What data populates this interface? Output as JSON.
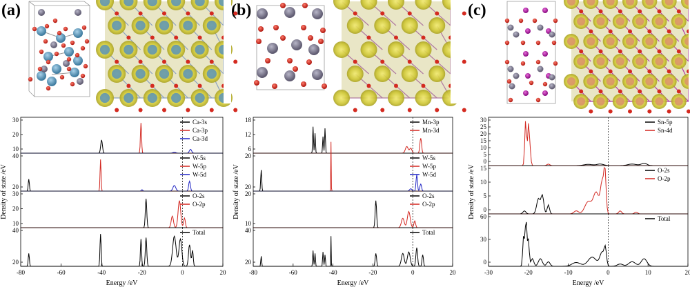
{
  "panels": [
    {
      "label": "(a)",
      "x_ticks": [
        "-80",
        "-60",
        "-40",
        "-20",
        "0",
        "20"
      ],
      "xlabel": "Energy /eV",
      "ylabel": "Density of state /eV",
      "subplots": [
        {
          "y_ticks": [
            "10",
            "20",
            "30"
          ],
          "legend": [
            "Ca-3s",
            "Ca-3p",
            "Ca-3d"
          ]
        },
        {
          "y_ticks": [
            "20",
            "40"
          ],
          "legend": [
            "W-5s",
            "W-5p",
            "W-5d"
          ]
        },
        {
          "y_ticks": [
            "10",
            "20",
            "30"
          ],
          "legend": [
            "O-2s",
            "O-2p"
          ]
        },
        {
          "y_ticks": [
            "20",
            "40"
          ],
          "legend": [
            "Total"
          ]
        }
      ]
    },
    {
      "label": "(b)",
      "x_ticks": [
        "-80",
        "-60",
        "-40",
        "-20",
        "0",
        "20"
      ],
      "xlabel": "Energy /eV",
      "ylabel": "Density of state /eV",
      "subplots": [
        {
          "y_ticks": [
            "6",
            "12",
            "18"
          ],
          "legend": [
            "Mn-3p",
            "Mn-3d"
          ]
        },
        {
          "y_ticks": [
            "20",
            "20"
          ],
          "legend": [
            "W-5s",
            "W-5p",
            "W-5d"
          ]
        },
        {
          "y_ticks": [
            "10",
            "20"
          ],
          "legend": [
            "O-2s",
            "O-2p"
          ]
        },
        {
          "y_ticks": [
            "20",
            "40"
          ],
          "legend": [
            "Total"
          ]
        }
      ]
    },
    {
      "label": "(c)",
      "x_ticks": [
        "-30",
        "-20",
        "-10",
        "0",
        "10",
        "20"
      ],
      "xlabel": "Energy /eV",
      "ylabel": "Density of state /eV",
      "subplots": [
        {
          "y_ticks": [
            "0",
            "5",
            "10",
            "15",
            "20",
            "25",
            "30"
          ],
          "legend": [
            "Sn-5p",
            "Sn-4d"
          ]
        },
        {
          "y_ticks": [
            "0",
            "5",
            "10",
            "15"
          ],
          "legend": [
            "O-2s",
            "O-2p"
          ]
        },
        {
          "y_ticks": [
            "0",
            "30",
            "60"
          ],
          "legend": [
            "Total"
          ]
        }
      ]
    }
  ],
  "colors": {
    "s": "#000000",
    "p": "#d2261f",
    "d": "#1f24c4",
    "atom_yellow": "#d8cf3a",
    "atom_blue": "#5a93b5",
    "atom_red": "#d42a20",
    "atom_grey": "#7d7990",
    "atom_purple": "#b21ba5"
  },
  "chart_data": [
    {
      "type": "line",
      "title": "(a)",
      "xlabel": "Energy /eV",
      "ylabel": "Density of state /eV",
      "xlim": [
        -80,
        20
      ],
      "series": [
        {
          "name": "Ca-3s",
          "x": [
            -41,
            -40,
            -39.5
          ],
          "y": [
            6,
            14,
            5
          ]
        },
        {
          "name": "Ca-3p",
          "x": [
            -21,
            -20.5,
            -20
          ],
          "y": [
            18,
            32,
            10
          ]
        },
        {
          "name": "Ca-3d",
          "x": [
            3,
            4,
            5
          ],
          "y": [
            1,
            4,
            1
          ]
        },
        {
          "name": "W-5s",
          "x": [
            -77,
            -76,
            -75
          ],
          "y": [
            8,
            17,
            6
          ]
        },
        {
          "name": "W-5p",
          "x": [
            -41,
            -40.5,
            -40
          ],
          "y": [
            30,
            45,
            20
          ]
        },
        {
          "name": "W-5d",
          "x": [
            -5,
            -4,
            3,
            4
          ],
          "y": [
            3,
            8,
            5,
            14
          ]
        },
        {
          "name": "O-2s",
          "x": [
            -19,
            -18,
            -17
          ],
          "y": [
            10,
            30,
            8
          ]
        },
        {
          "name": "O-2p",
          "x": [
            -6,
            -3,
            -1,
            0
          ],
          "y": [
            10,
            26,
            28,
            8
          ]
        },
        {
          "name": "Total",
          "x": [
            -76,
            -40,
            -20,
            -18,
            -4,
            0,
            3,
            5
          ],
          "y": [
            18,
            45,
            36,
            40,
            42,
            38,
            30,
            22
          ]
        }
      ]
    },
    {
      "type": "line",
      "title": "(b)",
      "xlabel": "Energy /eV",
      "ylabel": "Density of state /eV",
      "xlim": [
        -80,
        20
      ],
      "series": [
        {
          "name": "Mn-3p",
          "x": [
            -50,
            -49,
            -45,
            -44
          ],
          "y": [
            8,
            16,
            10,
            15
          ]
        },
        {
          "name": "Mn-3d",
          "x": [
            -4,
            -2,
            3,
            4
          ],
          "y": [
            2,
            4,
            6,
            9
          ]
        },
        {
          "name": "W-5s",
          "x": [
            -77,
            -76
          ],
          "y": [
            8,
            18
          ]
        },
        {
          "name": "W-5p",
          "x": [
            -41,
            -40.5
          ],
          "y": [
            20,
            42
          ]
        },
        {
          "name": "W-5d",
          "x": [
            1,
            2,
            3
          ],
          "y": [
            2,
            14,
            4
          ]
        },
        {
          "name": "O-2s",
          "x": [
            -19,
            -18,
            -17
          ],
          "y": [
            8,
            20,
            6
          ]
        },
        {
          "name": "O-2p",
          "x": [
            -6,
            -3,
            -1,
            0
          ],
          "y": [
            6,
            12,
            12,
            4
          ]
        },
        {
          "name": "Total",
          "x": [
            -76,
            -50,
            -45,
            -41,
            -19,
            -3,
            2,
            5
          ],
          "y": [
            14,
            22,
            20,
            42,
            18,
            20,
            26,
            16
          ]
        }
      ]
    },
    {
      "type": "line",
      "title": "(c)",
      "xlabel": "Energy /eV",
      "ylabel": "Density of state /eV",
      "xlim": [
        -30,
        20
      ],
      "series": [
        {
          "name": "Sn-5p",
          "x": [
            -5,
            -3,
            0,
            5,
            8,
            10
          ],
          "y": [
            0.5,
            1,
            0.5,
            1,
            1.5,
            1
          ]
        },
        {
          "name": "Sn-4d",
          "x": [
            -21,
            -20.5,
            -20,
            -19
          ],
          "y": [
            10,
            30,
            28,
            6
          ]
        },
        {
          "name": "O-2s",
          "x": [
            -18,
            -17,
            -16,
            -15
          ],
          "y": [
            2,
            5,
            6,
            3
          ]
        },
        {
          "name": "O-2p",
          "x": [
            -8,
            -4,
            -2,
            -1,
            0
          ],
          "y": [
            1,
            5,
            9,
            13,
            2
          ]
        },
        {
          "name": "Total",
          "x": [
            -22,
            -20.5,
            -19,
            -10,
            -2,
            0,
            5,
            8
          ],
          "y": [
            5,
            62,
            20,
            8,
            20,
            12,
            6,
            10
          ]
        }
      ]
    }
  ]
}
